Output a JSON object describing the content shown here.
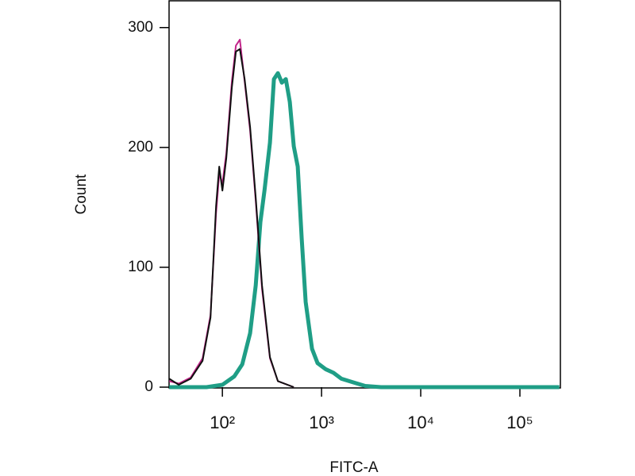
{
  "chart_data": {
    "type": "line",
    "x_label": "FITC-A",
    "y_label": "Count",
    "xscale": "log",
    "xlim": [
      29,
      256000
    ],
    "ylim": [
      0,
      323
    ],
    "xticks": [
      {
        "value": 100,
        "label": "10²"
      },
      {
        "value": 1000,
        "label": "10³"
      },
      {
        "value": 10000,
        "label": "10⁴"
      },
      {
        "value": 100000,
        "label": "10⁵"
      }
    ],
    "yticks": [
      0,
      100,
      200,
      300
    ],
    "series": [
      {
        "name": null,
        "color": "#1f9e86",
        "width": 5,
        "x": [
          29.1,
          69.2,
          100,
          131.8,
          158.5,
          190.5,
          216.8,
          242.1,
          265.5,
          302,
          331.1,
          363.1,
          398.1,
          436.5,
          478.6,
          524.8,
          575.4,
          631,
          691.8,
          801.7,
          912,
          1096,
          1318,
          1585,
          2089,
          2754,
          3981,
          250000
        ],
        "values": [
          0,
          0,
          2,
          9,
          19,
          45,
          85,
          138,
          164,
          204,
          257,
          262,
          254,
          257,
          238,
          201,
          184,
          124,
          71,
          32,
          20,
          15,
          12,
          7,
          4,
          1,
          0,
          0
        ]
      },
      {
        "name": null,
        "color": "#c2258a",
        "width": 2,
        "x": [
          29.1,
          36.3,
          47.9,
          63.1,
          75.9,
          86.3,
          92.9,
          100,
          109.6,
          124.7,
          136.8,
          150,
          167.5,
          190.5,
          216.8,
          251,
          302,
          363,
          525
        ],
        "values": [
          5,
          3,
          8,
          24,
          60,
          145,
          178,
          170,
          195,
          255,
          285,
          290,
          255,
          214,
          155,
          82,
          24,
          5,
          0
        ]
      },
      {
        "name": null,
        "color": "#111111",
        "width": 2,
        "x": [
          29.1,
          36.3,
          47.9,
          63.1,
          75.9,
          86.3,
          92.9,
          100,
          109.6,
          124.7,
          136.8,
          150,
          167.5,
          190.5,
          216.8,
          251,
          302,
          363,
          525
        ],
        "values": [
          7,
          2,
          7,
          22,
          58,
          151,
          184,
          164,
          191,
          250,
          280,
          282,
          257,
          217,
          158,
          85,
          25,
          5,
          0
        ]
      }
    ]
  }
}
